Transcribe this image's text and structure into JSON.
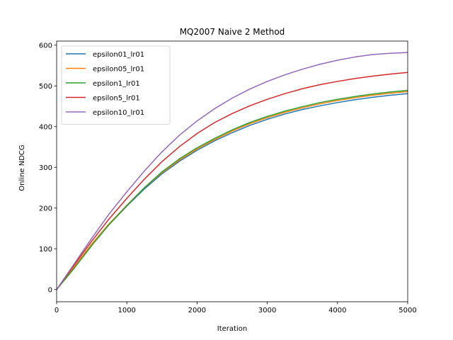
{
  "chart_data": {
    "type": "line",
    "title": "MQ2007 Naive 2 Method",
    "xlabel": "Iteration",
    "ylabel": "Online NDCG",
    "xlim": [
      0,
      5000
    ],
    "ylim": [
      -30,
      610
    ],
    "xticks": [
      0,
      1000,
      2000,
      3000,
      4000,
      5000
    ],
    "yticks": [
      0,
      100,
      200,
      300,
      400,
      500,
      600
    ],
    "grid": false,
    "legend_position": "top-left",
    "x": [
      0,
      250,
      500,
      750,
      1000,
      1250,
      1500,
      1750,
      2000,
      2250,
      2500,
      2750,
      3000,
      3250,
      3500,
      3750,
      4000,
      4250,
      4500,
      4750,
      5000
    ],
    "series": [
      {
        "name": "epsilon01_lr01",
        "color": "#1f77b4",
        "values": [
          0,
          55,
          110,
          160,
          205,
          247,
          284,
          315,
          342,
          365,
          385,
          403,
          418,
          431,
          442,
          451,
          459,
          466,
          472,
          477,
          481
        ]
      },
      {
        "name": "epsilon05_lr01",
        "color": "#ff7f0e",
        "values": [
          0,
          56,
          112,
          162,
          207,
          250,
          287,
          318,
          345,
          368,
          389,
          407,
          422,
          435,
          446,
          456,
          464,
          471,
          477,
          482,
          486
        ]
      },
      {
        "name": "epsilon1_lr01",
        "color": "#2ca02c",
        "values": [
          0,
          52,
          108,
          160,
          206,
          250,
          289,
          321,
          348,
          371,
          392,
          410,
          425,
          438,
          449,
          459,
          467,
          474,
          480,
          485,
          489
        ]
      },
      {
        "name": "epsilon5_lr01",
        "color": "#d62728",
        "values": [
          0,
          60,
          119,
          174,
          224,
          271,
          314,
          351,
          383,
          410,
          432,
          451,
          467,
          481,
          493,
          503,
          511,
          518,
          524,
          529,
          533
        ]
      },
      {
        "name": "epsilon10_lr01",
        "color": "#9467bd",
        "values": [
          0,
          63,
          126,
          186,
          240,
          291,
          338,
          379,
          414,
          444,
          470,
          492,
          511,
          527,
          541,
          553,
          563,
          571,
          577,
          580,
          582
        ]
      }
    ]
  }
}
